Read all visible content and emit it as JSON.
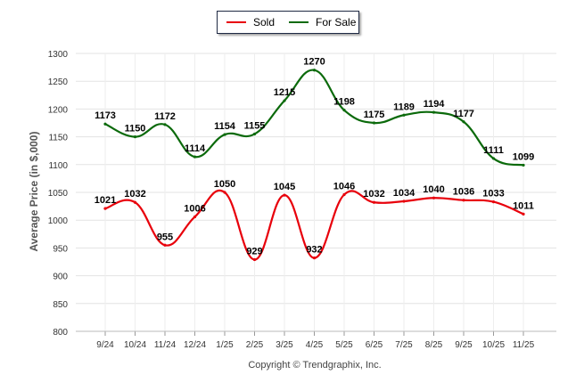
{
  "chart_data": {
    "type": "line",
    "title": "",
    "xlabel": "",
    "ylabel": "Average Price (in $,000)",
    "categories": [
      "9/24",
      "10/24",
      "11/24",
      "12/24",
      "1/25",
      "2/25",
      "3/25",
      "4/25",
      "5/25",
      "6/25",
      "7/25",
      "8/25",
      "9/25",
      "10/25",
      "11/25"
    ],
    "ylim": [
      800,
      1300
    ],
    "yticks": [
      800,
      850,
      900,
      950,
      1000,
      1050,
      1100,
      1150,
      1200,
      1250,
      1300
    ],
    "grid": true,
    "legend_position": "top-center",
    "series": [
      {
        "name": "Sold",
        "color": "#e8000b",
        "values": [
          1021,
          1032,
          955,
          1006,
          1050,
          929,
          1045,
          932,
          1046,
          1032,
          1034,
          1040,
          1036,
          1033,
          1011
        ]
      },
      {
        "name": "For Sale",
        "color": "#0b6a0b",
        "values": [
          1173,
          1150,
          1172,
          1114,
          1154,
          1155,
          1215,
          1270,
          1198,
          1175,
          1189,
          1194,
          1177,
          1111,
          1099
        ]
      }
    ],
    "footer": "Copyright © Trendgraphix, Inc."
  }
}
